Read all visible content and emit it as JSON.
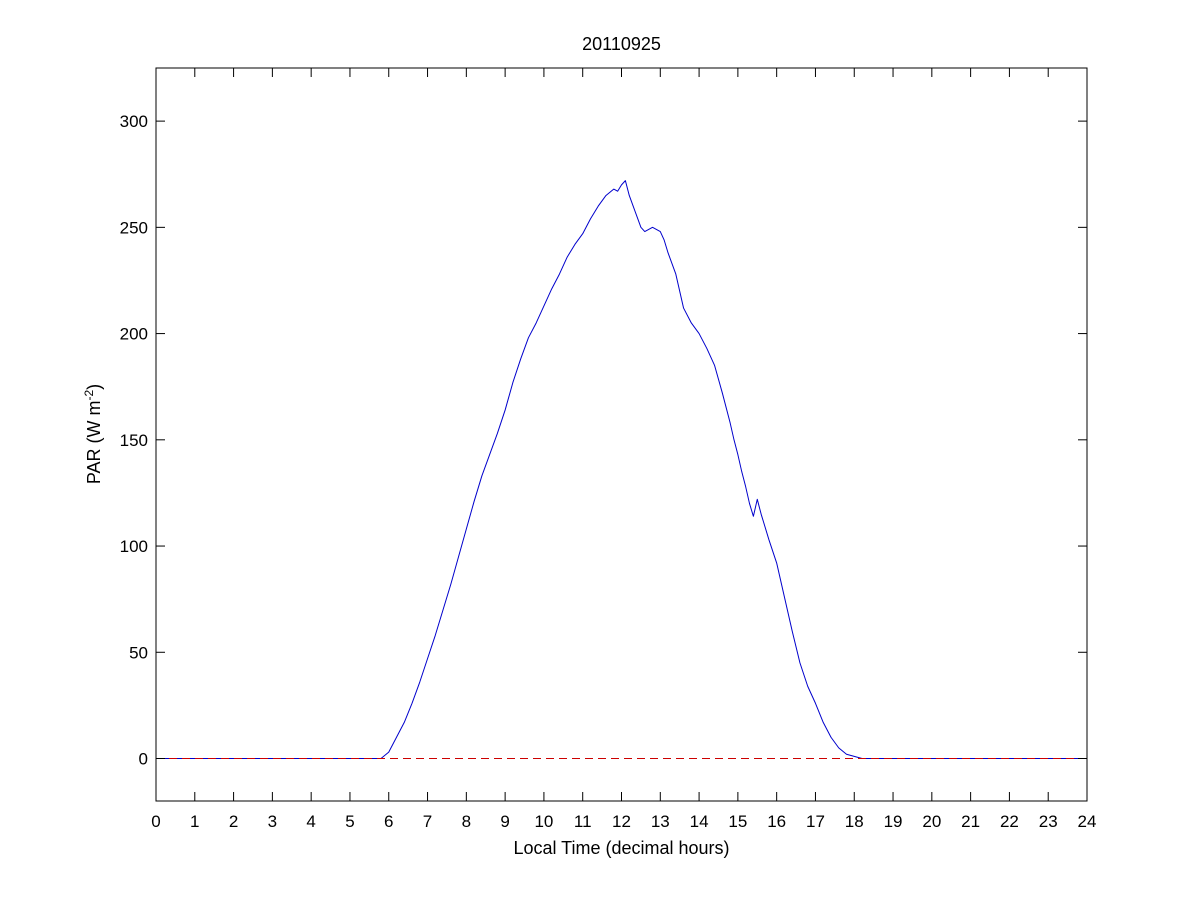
{
  "chart_data": {
    "type": "line",
    "title": "20110925",
    "xlabel": "Local Time (decimal hours)",
    "ylabel_main": "PAR (W m",
    "ylabel_sup": "-2",
    "ylabel_close": ")",
    "xlim": [
      0,
      24
    ],
    "ylim": [
      -20,
      325
    ],
    "xticks": [
      0,
      1,
      2,
      3,
      4,
      5,
      6,
      7,
      8,
      9,
      10,
      11,
      12,
      13,
      14,
      15,
      16,
      17,
      18,
      19,
      20,
      21,
      22,
      23,
      24
    ],
    "yticks": [
      0,
      50,
      100,
      150,
      200,
      250,
      300
    ],
    "grid": false,
    "legend": "none",
    "series": [
      {
        "color": "#0000cc",
        "style": "solid",
        "x": [
          0,
          5.8,
          6.0,
          6.2,
          6.4,
          6.6,
          6.8,
          7.0,
          7.2,
          7.4,
          7.6,
          7.8,
          8.0,
          8.2,
          8.4,
          8.6,
          8.8,
          9.0,
          9.2,
          9.4,
          9.6,
          9.8,
          10.0,
          10.2,
          10.4,
          10.6,
          10.8,
          11.0,
          11.2,
          11.4,
          11.6,
          11.8,
          11.9,
          12.0,
          12.1,
          12.2,
          12.3,
          12.4,
          12.5,
          12.6,
          12.8,
          13.0,
          13.1,
          13.2,
          13.4,
          13.6,
          13.8,
          14.0,
          14.2,
          14.4,
          14.6,
          14.8,
          14.9,
          15.0,
          15.1,
          15.2,
          15.3,
          15.4,
          15.5,
          15.6,
          15.8,
          16.0,
          16.2,
          16.4,
          16.6,
          16.8,
          17.0,
          17.2,
          17.4,
          17.6,
          17.8,
          18.0,
          18.2,
          24
        ],
        "y": [
          0,
          0,
          3,
          10,
          17,
          26,
          36,
          47,
          58,
          70,
          82,
          95,
          108,
          121,
          133,
          143,
          153,
          164,
          177,
          188,
          198,
          205,
          213,
          221,
          228,
          236,
          242,
          247,
          254,
          260,
          265,
          268,
          267,
          270,
          272,
          265,
          260,
          255,
          250,
          248,
          250,
          248,
          244,
          238,
          228,
          212,
          205,
          200,
          193,
          185,
          172,
          158,
          150,
          143,
          135,
          128,
          120,
          114,
          122,
          115,
          103,
          92,
          76,
          60,
          45,
          34,
          26,
          17,
          10,
          5,
          2,
          1,
          0,
          0
        ]
      },
      {
        "color": "#cc0000",
        "style": "dashed",
        "x": [
          0,
          24
        ],
        "y": [
          0,
          0
        ]
      }
    ]
  }
}
